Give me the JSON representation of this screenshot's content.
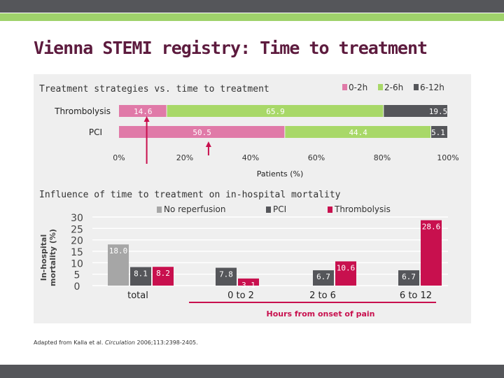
{
  "page": {
    "title": "Vienna STEMI registry: Time to treatment",
    "source_prefix": "Adapted from Kalla et al. ",
    "source_journal": "Circulation",
    "source_suffix": " 2006;113:2398-2405."
  },
  "colors": {
    "pink": "#e07aa8",
    "green": "#a8d868",
    "dark_gray": "#55565a",
    "gray": "#a6a6a6",
    "crimson": "#c8104e",
    "title": "#5d1b3e",
    "arrow": "#c8104e"
  },
  "chart_data": [
    {
      "type": "bar",
      "orientation": "horizontal",
      "stacked": true,
      "title": "Treatment strategies vs. time to treatment",
      "xlabel": "Patients (%)",
      "xlim": [
        0,
        100
      ],
      "x_ticks": [
        "0%",
        "20%",
        "40%",
        "60%",
        "80%",
        "100%"
      ],
      "categories": [
        "Thrombolysis",
        "PCI"
      ],
      "series": [
        {
          "name": "0-2h",
          "values": [
            14.6,
            50.5
          ]
        },
        {
          "name": "2-6h",
          "values": [
            65.9,
            44.4
          ]
        },
        {
          "name": "6-12h",
          "values": [
            19.5,
            5.1
          ]
        }
      ],
      "legend": "top-right",
      "annotations": [
        "arrow at about 8%",
        "arrow at about 27%"
      ]
    },
    {
      "type": "bar",
      "title": "Influence of time to treatment on in-hospital mortality",
      "ylabel": "In-hospital mortality (%)",
      "xlabel": "Hours from onset of pain",
      "ylim": [
        0,
        30
      ],
      "y_ticks": [
        "0",
        "5",
        "10",
        "15",
        "20",
        "25",
        "30"
      ],
      "categories": [
        "total",
        "0 to 2",
        "2 to 6",
        "6 to 12"
      ],
      "series": [
        {
          "name": "No reperfusion",
          "values": [
            18.0,
            null,
            null,
            null
          ]
        },
        {
          "name": "PCI",
          "values": [
            8.1,
            7.8,
            6.7,
            6.7
          ]
        },
        {
          "name": "Thrombolysis",
          "values": [
            8.2,
            3.1,
            10.6,
            28.6
          ]
        }
      ],
      "legend": "top",
      "grid": true
    }
  ]
}
